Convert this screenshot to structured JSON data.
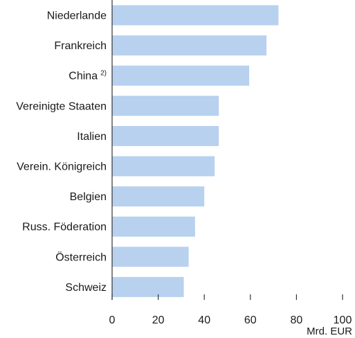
{
  "chart_data": {
    "type": "bar",
    "orientation": "horizontal",
    "categories": [
      "Niederlande",
      "Frankreich",
      "China",
      "Vereinigte Staaten",
      "Italien",
      "Verein. Königreich",
      "Belgien",
      "Russ. Föderation",
      "Österreich",
      "Schweiz"
    ],
    "footnote_marks": [
      "",
      "",
      "2)",
      "",
      "",
      "",
      "",
      "",
      "",
      ""
    ],
    "values": [
      72.2,
      67,
      59.5,
      46.3,
      46.3,
      44.5,
      40,
      36,
      33.2,
      31.1
    ],
    "xlim": [
      0,
      100
    ],
    "xticks": [
      0,
      20,
      40,
      60,
      80,
      100
    ],
    "xlabel": "Mrd. EUR",
    "title": "",
    "ylabel": "",
    "grid": false,
    "bar_color": "#b8d1ef",
    "axis_color": "#333333"
  }
}
